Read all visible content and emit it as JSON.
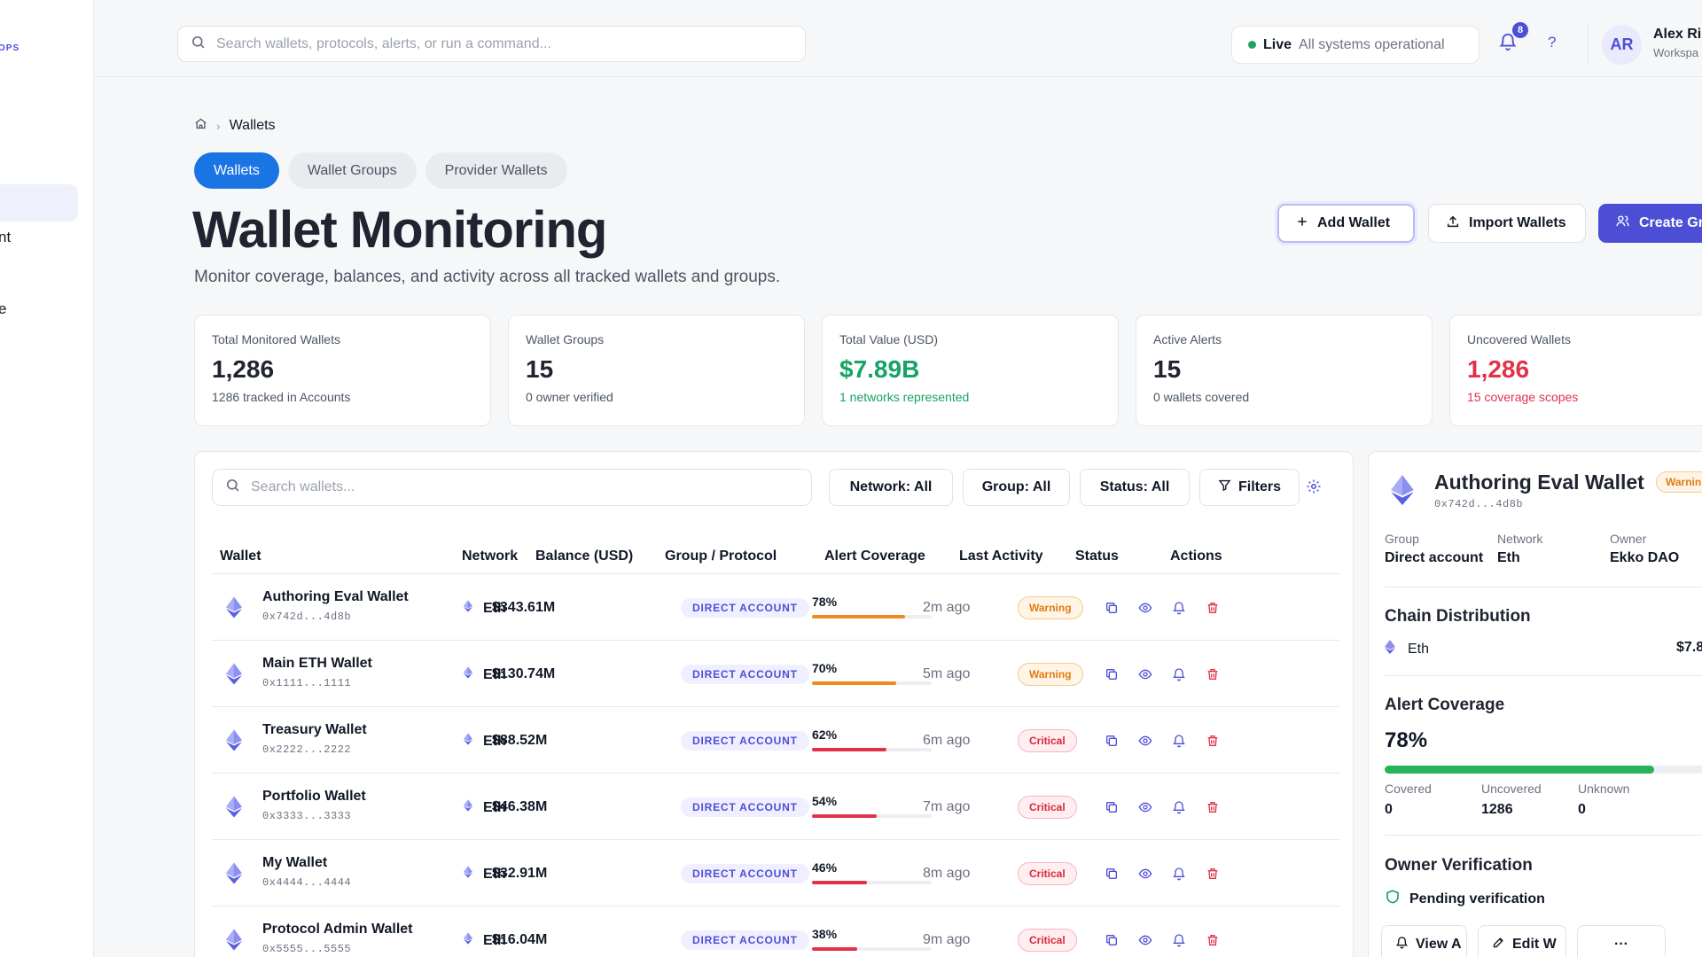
{
  "sidebar": {
    "brand_fragment": "OPS",
    "fragments": [
      "nt",
      "e"
    ]
  },
  "topbar": {
    "search_placeholder": "Search wallets, protocols, alerts, or run a command...",
    "status_live": "Live",
    "status_text": "All systems operational",
    "notif_count": "8",
    "help": "?",
    "user_initials": "AR",
    "user_name": "Alex Ri",
    "user_workspace": "Workspa"
  },
  "breadcrumb": {
    "current": "Wallets"
  },
  "tabs": [
    {
      "label": "Wallets",
      "active": true
    },
    {
      "label": "Wallet Groups",
      "active": false
    },
    {
      "label": "Provider Wallets",
      "active": false
    }
  ],
  "page": {
    "title": "Wallet Monitoring",
    "subtitle": "Monitor coverage, balances, and activity across all tracked wallets and groups."
  },
  "actions": {
    "add_wallet": "Add Wallet",
    "import_wallets": "Import Wallets",
    "create_group": "Create Gro"
  },
  "stats": [
    {
      "label": "Total Monitored Wallets",
      "value": "1,286",
      "sub": "1286 tracked in Accounts",
      "tone": "default"
    },
    {
      "label": "Wallet Groups",
      "value": "15",
      "sub": "0 owner verified",
      "tone": "default"
    },
    {
      "label": "Total Value (USD)",
      "value": "$7.89B",
      "sub": "1 networks represented",
      "tone": "green"
    },
    {
      "label": "Active Alerts",
      "value": "15",
      "sub": "0 wallets covered",
      "tone": "default"
    },
    {
      "label": "Uncovered Wallets",
      "value": "1,286",
      "sub": "15 coverage scopes",
      "tone": "red"
    }
  ],
  "table": {
    "search_placeholder": "Search wallets...",
    "filters": {
      "network": "Network: All",
      "group": "Group: All",
      "status": "Status: All",
      "more": "Filters"
    },
    "columns": [
      "Wallet",
      "Network",
      "Balance (USD)",
      "Group / Protocol",
      "Alert Coverage",
      "Last Activity",
      "Status",
      "Actions"
    ],
    "rows": [
      {
        "name": "Authoring Eval Wallet",
        "address": "0x742d...4d8b",
        "network": "Eth",
        "balance": "$343.61M",
        "group": "DIRECT ACCOUNT",
        "coverage": "78%",
        "coverage_value": 78,
        "last": "2m ago",
        "status": "Warning",
        "status_type": "warn"
      },
      {
        "name": "Main ETH Wallet",
        "address": "0x1111...1111",
        "network": "Eth",
        "balance": "$130.74M",
        "group": "DIRECT ACCOUNT",
        "coverage": "70%",
        "coverage_value": 70,
        "last": "5m ago",
        "status": "Warning",
        "status_type": "warn"
      },
      {
        "name": "Treasury Wallet",
        "address": "0x2222...2222",
        "network": "Eth",
        "balance": "$88.52M",
        "group": "DIRECT ACCOUNT",
        "coverage": "62%",
        "coverage_value": 62,
        "last": "6m ago",
        "status": "Critical",
        "status_type": "crit"
      },
      {
        "name": "Portfolio Wallet",
        "address": "0x3333...3333",
        "network": "Eth",
        "balance": "$46.38M",
        "group": "DIRECT ACCOUNT",
        "coverage": "54%",
        "coverage_value": 54,
        "last": "7m ago",
        "status": "Critical",
        "status_type": "crit"
      },
      {
        "name": "My Wallet",
        "address": "0x4444...4444",
        "network": "Eth",
        "balance": "$32.91M",
        "group": "DIRECT ACCOUNT",
        "coverage": "46%",
        "coverage_value": 46,
        "last": "8m ago",
        "status": "Critical",
        "status_type": "crit"
      },
      {
        "name": "Protocol Admin Wallet",
        "address": "0x5555...5555",
        "network": "Eth",
        "balance": "$16.04M",
        "group": "DIRECT ACCOUNT",
        "coverage": "38%",
        "coverage_value": 38,
        "last": "9m ago",
        "status": "Critical",
        "status_type": "crit"
      }
    ]
  },
  "detail": {
    "name": "Authoring Eval Wallet",
    "address": "0x742d...4d8b",
    "status": "Warnin",
    "group_label": "Group",
    "group": "Direct account",
    "network_label": "Network",
    "network": "Eth",
    "owner_label": "Owner",
    "owner": "Ekko DAO",
    "chain_title": "Chain Distribution",
    "chain_name": "Eth",
    "chain_value": "$7.8",
    "coverage_title": "Alert Coverage",
    "coverage_pct": "78%",
    "coverage_value": 78,
    "covered_label": "Covered",
    "covered": "0",
    "uncovered_label": "Uncovered",
    "uncovered": "1286",
    "unknown_label": "Unknown",
    "unknown": "0",
    "owner_title": "Owner Verification",
    "owner_status": "Pending verification",
    "btn_view": "View A",
    "btn_edit": "Edit W",
    "btn_more": "···"
  },
  "colors": {
    "accent": "#4c4fd6",
    "primary_tab": "#1b74e4",
    "green": "#16a365",
    "red": "#e0334a",
    "warn": "#e07b12"
  }
}
